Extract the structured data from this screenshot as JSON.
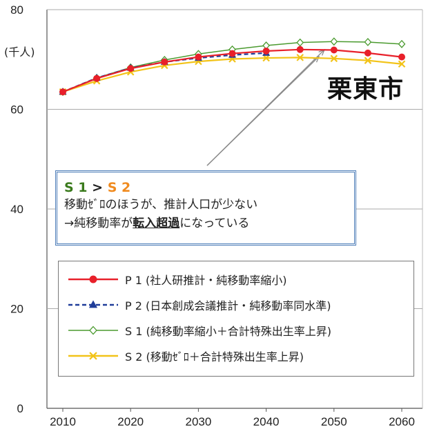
{
  "unit_label": "(千人)",
  "city_label": "栗東市",
  "callout": {
    "head_s1": "S 1",
    "head_gt": " > ",
    "head_s2": "S 2",
    "line1": "移動ｾﾞﾛのほうが、推計人口が少ない",
    "line2_prefix": "→純移動率が",
    "line2_strong": "転入超過",
    "line2_suffix": "になっている"
  },
  "chart_data": {
    "type": "line",
    "title": "",
    "xlabel": "",
    "ylabel": "(千人)",
    "x": [
      2010,
      2015,
      2020,
      2025,
      2030,
      2035,
      2040,
      2045,
      2050,
      2055,
      2060
    ],
    "xticks": [
      "2010",
      "2020",
      "2030",
      "2040",
      "2050",
      "2060"
    ],
    "yticks": [
      "0",
      "20",
      "40",
      "60",
      "80"
    ],
    "ylim": [
      0,
      80
    ],
    "grid": true,
    "series": [
      {
        "name": "P 1 (社人研推計・純移動率縮小)",
        "color": "#e8202a",
        "dash": "solid",
        "marker": "circle",
        "values": [
          63.5,
          66.2,
          68.2,
          69.5,
          70.5,
          71.2,
          71.7,
          72.0,
          71.9,
          71.3,
          70.5
        ]
      },
      {
        "name": "P 2 (日本創成会議推計・純移動率同水準)",
        "color": "#1f3c99",
        "dash": "dashed",
        "marker": "triangle",
        "values": [
          63.5,
          66.3,
          68.3,
          69.5,
          70.3,
          70.9,
          71.3,
          null,
          null,
          null,
          null
        ]
      },
      {
        "name": "S 1 (純移動率縮小＋合計特殊出生率上昇)",
        "color": "#4a9a2e",
        "dash": "solid",
        "marker": "diamond",
        "values": [
          63.5,
          66.3,
          68.4,
          69.9,
          71.1,
          72.0,
          72.8,
          73.4,
          73.6,
          73.5,
          73.1
        ]
      },
      {
        "name": "S 2 (移動ｾﾞﾛ＋合計特殊出生率上昇)",
        "color": "#f2c318",
        "dash": "solid",
        "marker": "x",
        "values": [
          63.5,
          65.7,
          67.5,
          68.8,
          69.6,
          70.1,
          70.3,
          70.4,
          70.2,
          69.8,
          69.1
        ]
      }
    ]
  }
}
